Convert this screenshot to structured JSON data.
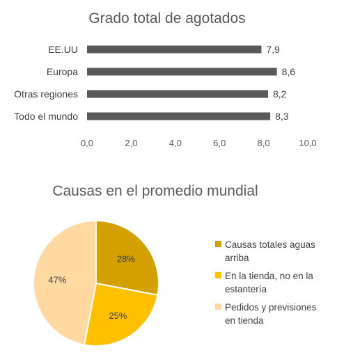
{
  "chart_data": [
    {
      "type": "bar",
      "orientation": "horizontal",
      "title": "Grado total de agotados",
      "categories": [
        "EE.UU",
        "Europa",
        "Otras regiones",
        "Todo el mundo"
      ],
      "values": [
        7.9,
        8.6,
        8.2,
        8.3
      ],
      "value_labels": [
        "7,9",
        "8,6",
        "8,2",
        "8,3"
      ],
      "xlim": [
        0,
        10
      ],
      "ticks": [
        "0,0",
        "2,0",
        "4,0",
        "6,0",
        "8,0",
        "10,0"
      ],
      "colors": {
        "bar": "#595959"
      },
      "grid": false
    },
    {
      "type": "pie",
      "title": "Causas en el promedio mundial",
      "slices": [
        {
          "label": "Causas totales aguas arriba",
          "legend_lines": [
            "Causas totales aguas",
            "arriba"
          ],
          "value": 28,
          "display": "28%",
          "color": "#D4A000"
        },
        {
          "label": "En la tienda, no en la estantería",
          "legend_lines": [
            "En la tienda, no en la",
            "estantería"
          ],
          "value": 25,
          "display": "25%",
          "color": "#FFC000"
        },
        {
          "label": "Pedidos y previsiones en tienda",
          "legend_lines": [
            "Pedidos y previsiones",
            "en tienda"
          ],
          "value": 47,
          "display": "47%",
          "color": "#FFD9A0"
        }
      ],
      "legend_position": "right"
    }
  ]
}
